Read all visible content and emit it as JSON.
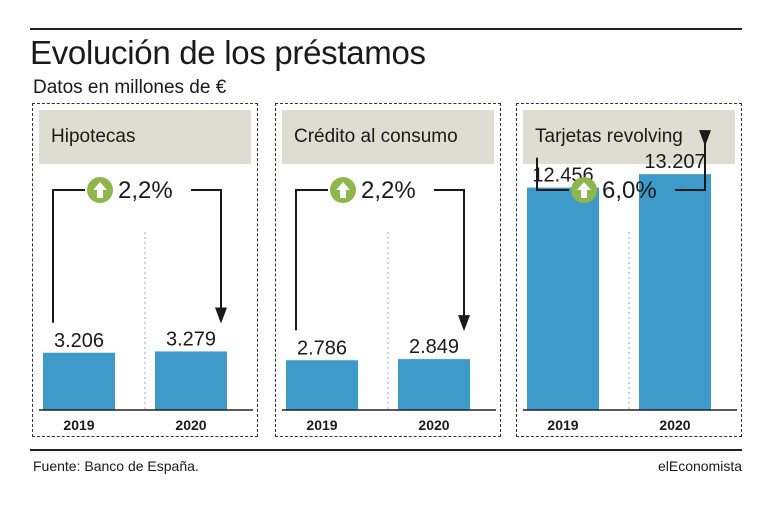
{
  "title": "Evolución de los préstamos",
  "subtitle": "Datos en millones de €",
  "source": "Fuente: Banco de España.",
  "brand": "elEconomista",
  "colors": {
    "bar": "#3d9ac9",
    "arrow_badge": "#8fb64a",
    "header_bg": "#ddddd1"
  },
  "chart_data": [
    {
      "type": "bar",
      "title": "Hipotecas",
      "categories": [
        "2019",
        "2020"
      ],
      "values": [
        3206,
        3279
      ],
      "value_labels": [
        "3.206",
        "3.279"
      ],
      "change_label": "2,2%",
      "change_direction": "up",
      "ylim": [
        0,
        14000
      ]
    },
    {
      "type": "bar",
      "title": "Crédito al consumo",
      "categories": [
        "2019",
        "2020"
      ],
      "values": [
        2786,
        2849
      ],
      "value_labels": [
        "2.786",
        "2.849"
      ],
      "change_label": "2,2%",
      "change_direction": "up",
      "ylim": [
        0,
        14000
      ]
    },
    {
      "type": "bar",
      "title": "Tarjetas revolving",
      "categories": [
        "2019",
        "2020"
      ],
      "values": [
        12456,
        13207
      ],
      "value_labels": [
        "12.456",
        "13.207"
      ],
      "change_label": "6,0%",
      "change_direction": "up",
      "ylim": [
        0,
        14000
      ]
    }
  ]
}
